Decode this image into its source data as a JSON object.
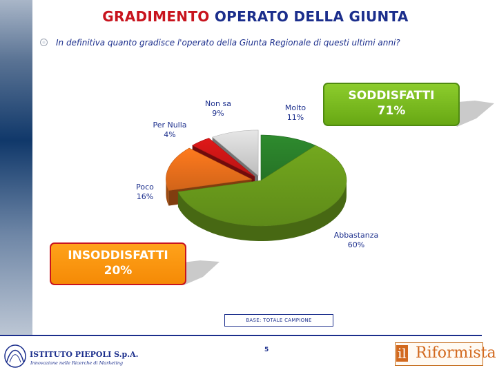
{
  "header": {
    "title_part1": "GRADIMENTO",
    "title_part2": "OPERATO DELLA GIUNTA",
    "question": "In definitiva quanto gradisce l'operato della Giunta Regionale di questi ultimi anni?"
  },
  "chart_data": {
    "type": "pie",
    "categories": [
      "Molto",
      "Abbastanza",
      "Poco",
      "Per Nulla",
      "Non sa"
    ],
    "values": [
      11,
      60,
      16,
      4,
      9
    ],
    "labels": [
      "11%",
      "60%",
      "16%",
      "4%",
      "9%"
    ],
    "colors": [
      "#2e8b2e",
      "#73a81e",
      "#ff7a1e",
      "#e01818",
      "#e6e6e6"
    ],
    "legend": "none"
  },
  "callouts": {
    "positive_label": "SODDISFATTI",
    "positive_value": "71%",
    "positive_color": "#7cbf24",
    "negative_label": "INSODDISFATTI",
    "negative_value": "20%",
    "negative_color": "#ff9612"
  },
  "footer": {
    "base": "BASE: TOTALE CAMPIONE",
    "page_number": "5",
    "left_logo_name": "ISTITUTO PIEPOLI S.p.A.",
    "left_logo_tagline": "Innovazione nelle Ricerche di Marketing",
    "right_logo_prefix": "il",
    "right_logo_name": "Riformista"
  }
}
